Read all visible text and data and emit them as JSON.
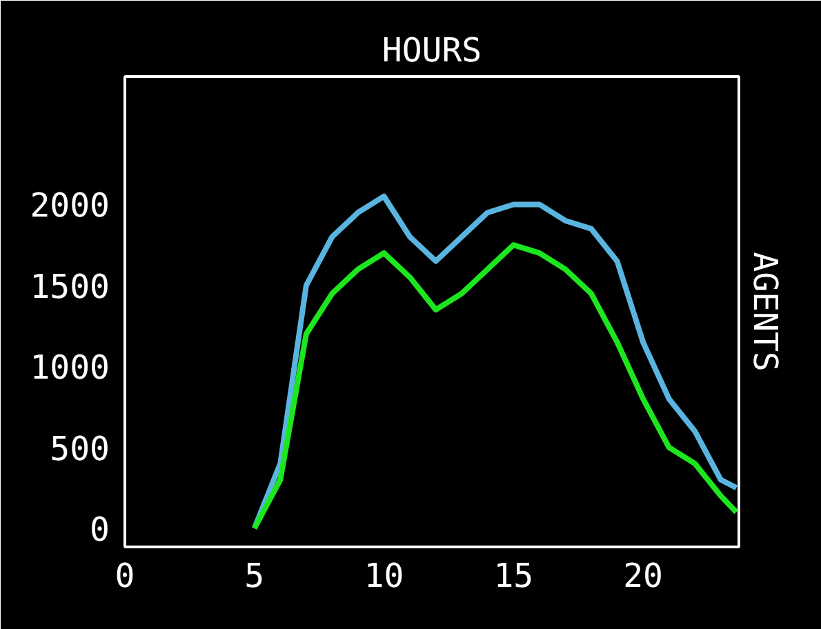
{
  "chart_data": {
    "type": "line",
    "title": "HOURS",
    "ylabel": "AGENTS",
    "xlim": [
      0,
      23.7
    ],
    "ylim": [
      -115,
      2790
    ],
    "xticks": [
      0,
      5,
      10,
      15,
      20
    ],
    "yticks": [
      0,
      500,
      1000,
      1500,
      2000
    ],
    "series": [
      {
        "color": "#5ab4e0",
        "x": [
          5,
          6,
          7,
          8,
          9,
          10,
          11,
          12,
          13,
          14,
          15,
          16,
          17,
          18,
          19,
          20,
          21,
          22,
          23,
          23.6
        ],
        "values": [
          0,
          400,
          1500,
          1800,
          1950,
          2050,
          1800,
          1650,
          1800,
          1950,
          2000,
          2000,
          1900,
          1850,
          1650,
          1150,
          800,
          600,
          300,
          250
        ]
      },
      {
        "color": "#1ee61e",
        "x": [
          5,
          6,
          7,
          8,
          9,
          10,
          11,
          12,
          13,
          14,
          15,
          16,
          17,
          18,
          19,
          20,
          21,
          22,
          23,
          23.6
        ],
        "values": [
          0,
          300,
          1200,
          1450,
          1600,
          1700,
          1550,
          1350,
          1450,
          1600,
          1750,
          1700,
          1600,
          1450,
          1150,
          800,
          500,
          400,
          200,
          100
        ]
      }
    ]
  }
}
